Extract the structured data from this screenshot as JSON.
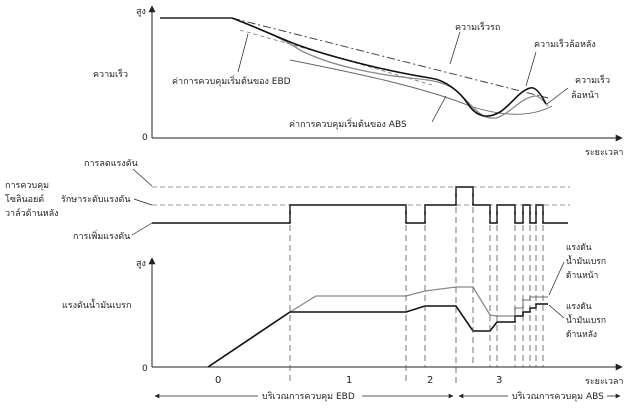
{
  "top": {
    "y_high": "สูง",
    "y_label": "ความเร็ว",
    "y_zero": "0",
    "x_label": "ระยะเวลา",
    "vehicle_speed": "ความเร็วรถ",
    "rear_wheel_speed": "ความเร็วล้อหลัง",
    "front_wheel_speed_1": "ความเร็ว",
    "front_wheel_speed_2": "ล้อหน้า",
    "ebd_start": "ค่าการควบคุมเริ่มต้นของ EBD",
    "abs_start": "ค่าการควบคุมเริ่มต้นของ ABS"
  },
  "middle": {
    "title_1": "การควบคุม",
    "title_2": "โซลินอยด์",
    "title_3": "วาล์วด้านหลัง",
    "pressure_reduce": "การลดแรงดัน",
    "pressure_hold": "รักษาระดับแรงดัน",
    "pressure_increase": "การเพิ่มแรงดัน"
  },
  "bottom": {
    "y_high": "สูง",
    "y_label": "แรงดันน้ำมันเบรก",
    "y_zero": "0",
    "x_label": "ระยะเวลา",
    "front_1": "แรงดัน",
    "front_2": "น้ำมันเบรก",
    "front_3": "ด้านหน้า",
    "rear_1": "แรงดัน",
    "rear_2": "น้ำมันเบรก",
    "rear_3": "ด้านหลัง"
  },
  "zones": {
    "z0": "0",
    "z1": "1",
    "z2": "2",
    "z3": "3"
  },
  "regions": {
    "ebd": "บริเวณการควบคุม EBD",
    "abs": "บริเวณการควบคุม ABS"
  }
}
